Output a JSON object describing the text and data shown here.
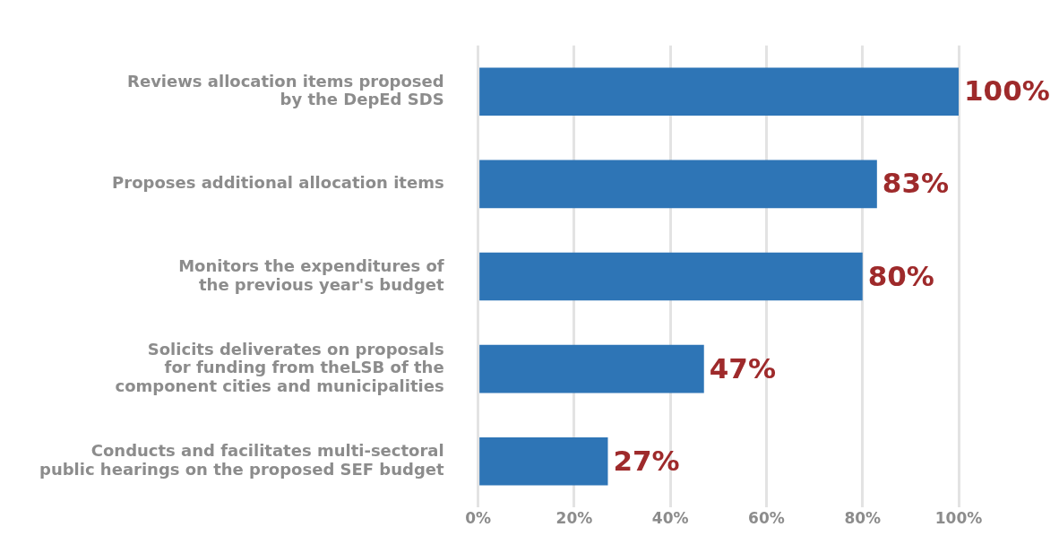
{
  "chart_data": {
    "type": "bar",
    "orientation": "horizontal",
    "categories": [
      "Reviews allocation items proposed\nby the DepEd SDS",
      "Proposes additional allocation items",
      "Monitors the expenditures of\nthe previous year's budget",
      "Solicits deliverates on proposals\nfor funding from theLSB of the\ncomponent cities and municipalities",
      "Conducts and facilitates multi-sectoral\npublic hearings on the proposed SEF budget"
    ],
    "values": [
      100,
      83,
      80,
      47,
      27
    ],
    "value_labels": [
      "100%",
      "83%",
      "80%",
      "47%",
      "27%"
    ],
    "color": "#2e75b6",
    "xlim": [
      0,
      100
    ],
    "xticks": [
      {
        "value": 0,
        "label": "0%"
      },
      {
        "value": 20,
        "label": "20%"
      },
      {
        "value": 40,
        "label": "40%"
      },
      {
        "value": 60,
        "label": "60%"
      },
      {
        "value": 80,
        "label": "80%"
      },
      {
        "value": 100,
        "label": "100%"
      }
    ],
    "grid": "x",
    "legend": false
  }
}
